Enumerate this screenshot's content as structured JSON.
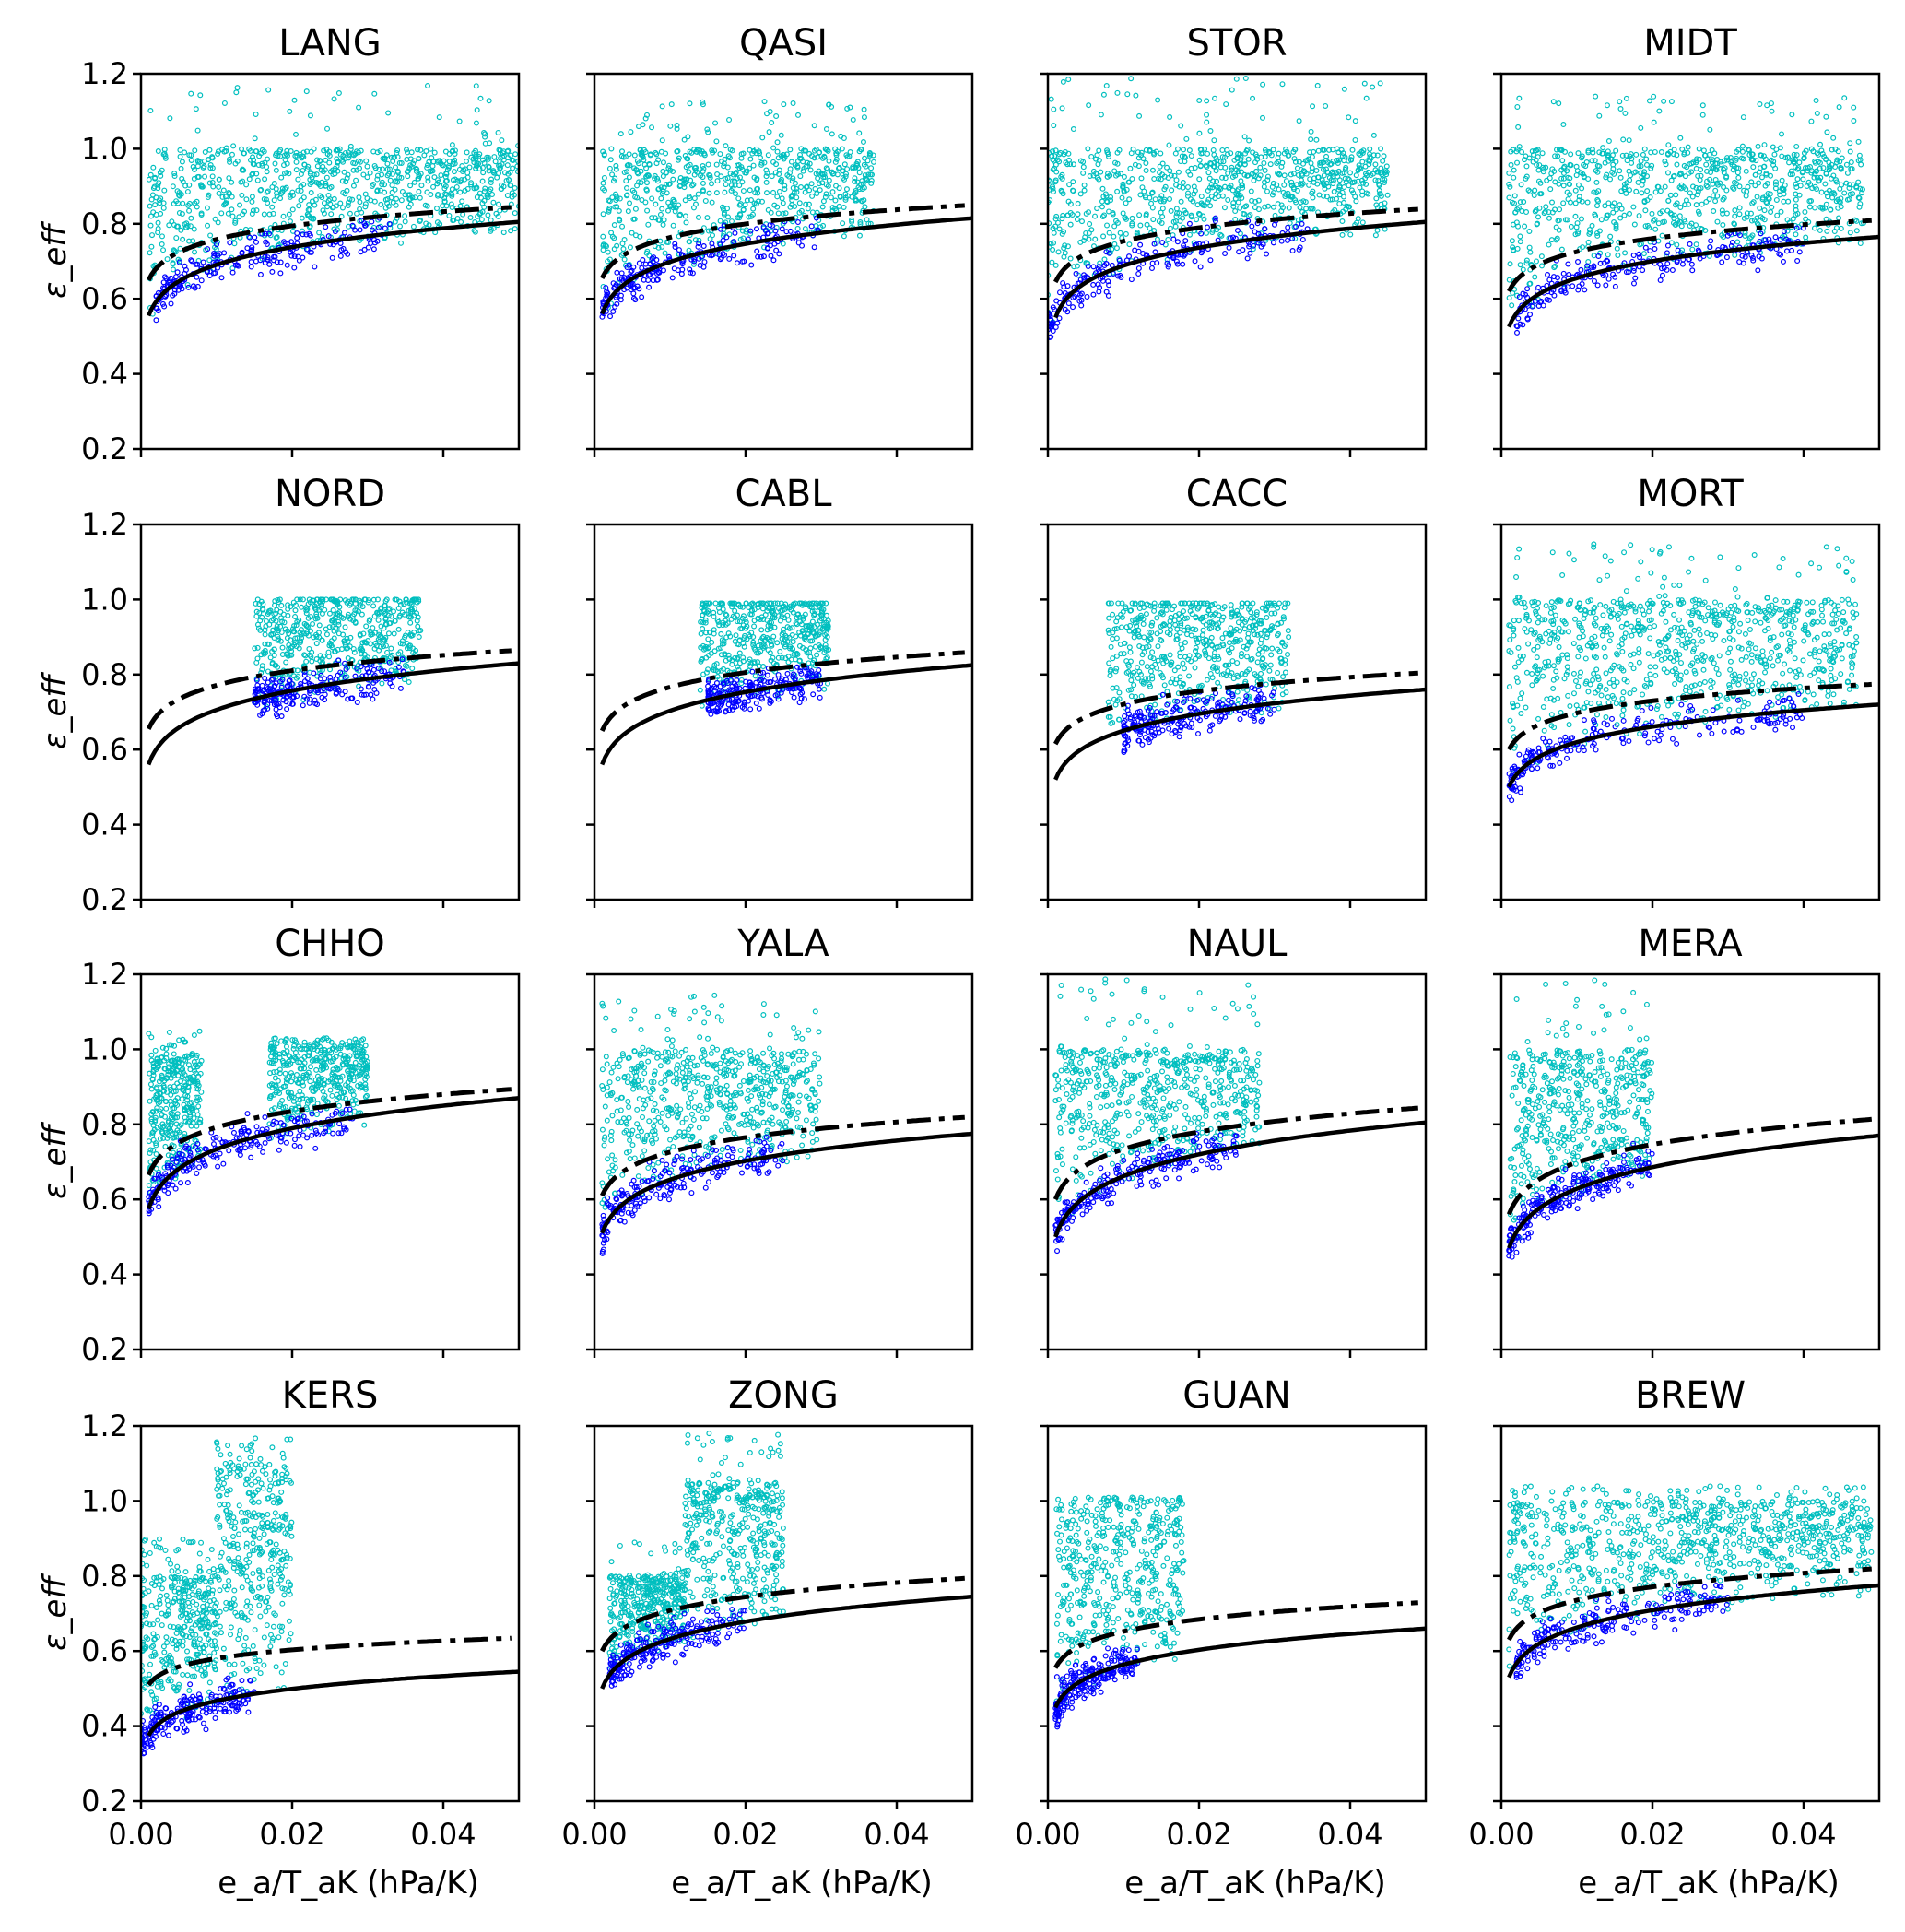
{
  "chart_data": {
    "type": "scatter",
    "layout": "4x4 grid of panels, shared axes",
    "xlabel": "e_a/T_aK (hPa/K)",
    "ylabel": "ε_eff",
    "xlim": [
      0,
      0.05
    ],
    "ylim": [
      0.2,
      1.2
    ],
    "xticks": [
      "0.00",
      "0.02",
      "0.04"
    ],
    "xtick_values": [
      0,
      0.02,
      0.04
    ],
    "yticks": [
      "0.2",
      "0.4",
      "0.6",
      "0.8",
      "1.0",
      "1.2"
    ],
    "ytick_values": [
      0.2,
      0.4,
      0.6,
      0.8,
      1.0,
      1.2
    ],
    "grid": false,
    "colors": {
      "all_sky": "#00bfbf",
      "clear_sky": "#0000ff",
      "curves": "#000000"
    },
    "note_series": [
      "cyan scatter (all points)",
      "blue scatter (clear-sky points)",
      "solid black curve",
      "dash-dot black curve"
    ],
    "curve_form": "power law through y at x=0.001 and x=0.05",
    "panels": [
      {
        "title": "LANG",
        "solid": [
          0.555,
          0.805
        ],
        "dashdot": [
          0.65,
          0.845
        ],
        "cyan": [
          {
            "x": [
              0.001,
              0.05
            ],
            "ytop": 1.0,
            "ymax": 1.17
          }
        ],
        "blue": [
          0.002,
          0.033
        ]
      },
      {
        "title": "QASI",
        "solid": [
          0.56,
          0.815
        ],
        "dashdot": [
          0.655,
          0.85
        ],
        "cyan": [
          {
            "x": [
              0.001,
              0.037
            ],
            "ytop": 1.0,
            "ymax": 1.13
          }
        ],
        "blue": [
          0.001,
          0.03
        ]
      },
      {
        "title": "STOR",
        "solid": [
          0.55,
          0.805
        ],
        "dashdot": [
          0.645,
          0.84
        ],
        "cyan": [
          {
            "x": [
              0.0,
              0.045
            ],
            "ytop": 1.0,
            "ymax": 1.19
          }
        ],
        "blue": [
          0.0,
          0.035
        ]
      },
      {
        "title": "MIDT",
        "solid": [
          0.525,
          0.765
        ],
        "dashdot": [
          0.62,
          0.81
        ],
        "cyan": [
          {
            "x": [
              0.001,
              0.048
            ],
            "ytop": 1.0,
            "ymax": 1.15
          }
        ],
        "blue": [
          0.002,
          0.04
        ]
      },
      {
        "title": "NORD",
        "solid": [
          0.56,
          0.83
        ],
        "dashdot": [
          0.655,
          0.865
        ],
        "cyan": [
          {
            "x": [
              0.015,
              0.037
            ],
            "ytop": 1.0,
            "ymax": 1.0
          }
        ],
        "blue": [
          0.015,
          0.035
        ]
      },
      {
        "title": "CABL",
        "solid": [
          0.56,
          0.825
        ],
        "dashdot": [
          0.65,
          0.86
        ],
        "cyan": [
          {
            "x": [
              0.014,
              0.031
            ],
            "ytop": 0.99,
            "ymax": 0.99
          }
        ],
        "blue": [
          0.015,
          0.03
        ]
      },
      {
        "title": "CACC",
        "solid": [
          0.52,
          0.76
        ],
        "dashdot": [
          0.615,
          0.805
        ],
        "cyan": [
          {
            "x": [
              0.008,
              0.032
            ],
            "ytop": 0.99,
            "ymax": 0.99
          }
        ],
        "blue": [
          0.01,
          0.03
        ]
      },
      {
        "title": "MORT",
        "solid": [
          0.5,
          0.72
        ],
        "dashdot": [
          0.6,
          0.775
        ],
        "cyan": [
          {
            "x": [
              0.001,
              0.047
            ],
            "ytop": 1.0,
            "ymax": 1.15
          }
        ],
        "blue": [
          0.001,
          0.04
        ]
      },
      {
        "title": "CHHO",
        "solid": [
          0.575,
          0.87
        ],
        "dashdot": [
          0.665,
          0.895
        ],
        "cyan": [
          {
            "x": [
              0.001,
              0.008
            ],
            "ytop": 0.99,
            "ymax": 1.05
          },
          {
            "x": [
              0.017,
              0.03
            ],
            "ytop": 1.01,
            "ymax": 1.03
          }
        ],
        "blue": [
          0.001,
          0.028
        ]
      },
      {
        "title": "YALA",
        "solid": [
          0.51,
          0.775
        ],
        "dashdot": [
          0.61,
          0.82
        ],
        "cyan": [
          {
            "x": [
              0.001,
              0.03
            ],
            "ytop": 1.0,
            "ymax": 1.15
          }
        ],
        "blue": [
          0.001,
          0.025
        ]
      },
      {
        "title": "NAUL",
        "solid": [
          0.5,
          0.805
        ],
        "dashdot": [
          0.6,
          0.845
        ],
        "cyan": [
          {
            "x": [
              0.001,
              0.028
            ],
            "ytop": 1.0,
            "ymax": 1.19
          }
        ],
        "blue": [
          0.001,
          0.025
        ]
      },
      {
        "title": "MERA",
        "solid": [
          0.47,
          0.77
        ],
        "dashdot": [
          0.56,
          0.815
        ],
        "cyan": [
          {
            "x": [
              0.001,
              0.02
            ],
            "ytop": 1.0,
            "ymax": 1.19
          }
        ],
        "blue": [
          0.001,
          0.02
        ]
      },
      {
        "title": "KERS",
        "solid": [
          0.375,
          0.545
        ],
        "dashdot": [
          0.51,
          0.635
        ],
        "cyan": [
          {
            "x": [
              0.0,
              0.01
            ],
            "ytop": 0.8,
            "ymax": 0.9
          },
          {
            "x": [
              0.01,
              0.02
            ],
            "ytop": 1.1,
            "ymax": 1.17
          }
        ],
        "blue": [
          0.0,
          0.015
        ]
      },
      {
        "title": "ZONG",
        "solid": [
          0.5,
          0.745
        ],
        "dashdot": [
          0.6,
          0.795
        ],
        "cyan": [
          {
            "x": [
              0.002,
              0.012
            ],
            "ytop": 0.8,
            "ymax": 0.9
          },
          {
            "x": [
              0.012,
              0.025
            ],
            "ytop": 1.05,
            "ymax": 1.19
          }
        ],
        "blue": [
          0.002,
          0.02
        ]
      },
      {
        "title": "GUAN",
        "solid": [
          0.45,
          0.66
        ],
        "dashdot": [
          0.555,
          0.73
        ],
        "cyan": [
          {
            "x": [
              0.001,
              0.018
            ],
            "ytop": 1.0,
            "ymax": 1.01
          }
        ],
        "blue": [
          0.001,
          0.012
        ]
      },
      {
        "title": "BREW",
        "solid": [
          0.53,
          0.775
        ],
        "dashdot": [
          0.63,
          0.82
        ],
        "cyan": [
          {
            "x": [
              0.001,
              0.049
            ],
            "ytop": 1.0,
            "ymax": 1.04
          }
        ],
        "blue": [
          0.002,
          0.03
        ]
      }
    ]
  }
}
